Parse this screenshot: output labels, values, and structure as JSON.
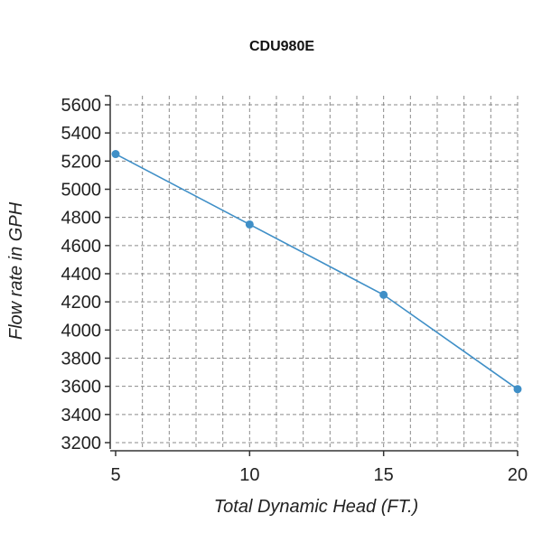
{
  "chart_data": {
    "type": "line",
    "title": "CDU980E",
    "xlabel": "Total Dynamic Head (FT.)",
    "ylabel": "Flow rate in GPH",
    "xlim": [
      5,
      20
    ],
    "ylim": [
      3200,
      5600
    ],
    "xticks": [
      5,
      10,
      15,
      20
    ],
    "yticks": [
      3200,
      3400,
      3600,
      3800,
      4000,
      4200,
      4400,
      4600,
      4800,
      5000,
      5200,
      5400,
      5600
    ],
    "x_minor_grid": [
      6,
      7,
      8,
      9,
      11,
      12,
      13,
      14,
      16,
      17,
      18,
      19
    ],
    "grid": true,
    "series": [
      {
        "x": [
          5,
          10,
          15,
          20
        ],
        "values": [
          5250,
          4750,
          4250,
          3580
        ],
        "color": "#3f8fc7"
      }
    ]
  }
}
